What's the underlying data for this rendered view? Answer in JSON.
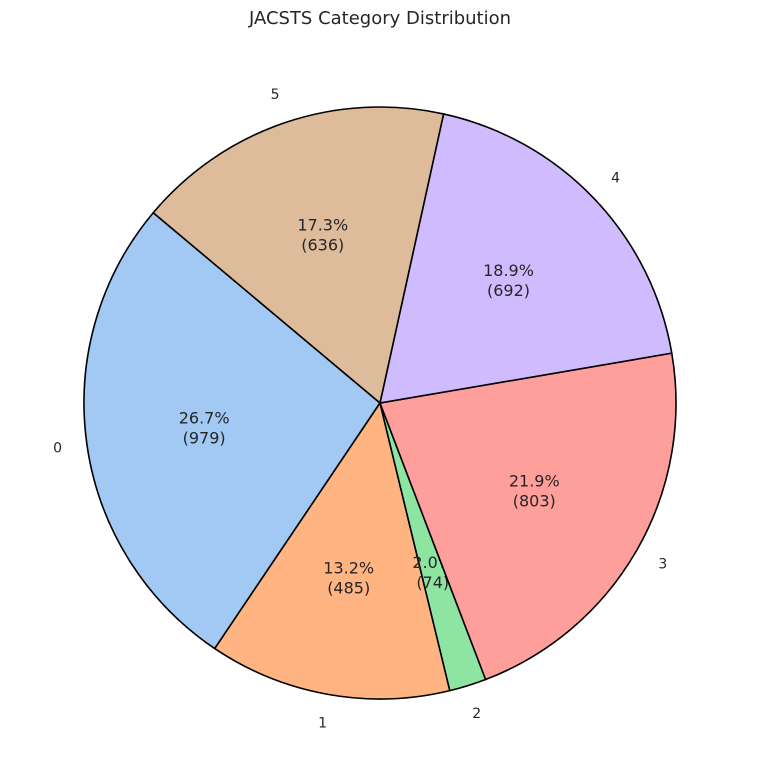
{
  "chart_data": {
    "type": "pie",
    "title": "JACSTS Category Distribution",
    "categories": [
      "0",
      "1",
      "2",
      "3",
      "4",
      "5"
    ],
    "values": [
      979,
      485,
      74,
      803,
      692,
      636
    ],
    "percent_labels": [
      "26.7%",
      "13.2%",
      "2.0%",
      "21.9%",
      "18.9%",
      "17.3%"
    ],
    "count_labels": [
      "(979)",
      "(485)",
      "(74)",
      "(803)",
      "(692)",
      "(636)"
    ],
    "colors": [
      "#a1c9f4",
      "#ffb482",
      "#8de5a1",
      "#ff9f9b",
      "#d0bbff",
      "#debb9b"
    ],
    "edge_color": "#000000",
    "start_angle_deg": 140,
    "direction": "counterclockwise"
  }
}
